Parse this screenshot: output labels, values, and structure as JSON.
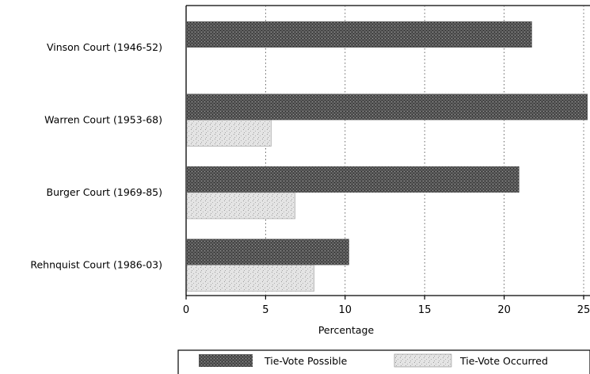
{
  "chart_data": {
    "type": "bar",
    "orientation": "horizontal",
    "title": "",
    "xlabel": "Percentage",
    "ylabel": "",
    "xlim": [
      0,
      25
    ],
    "xticks": [
      0,
      5,
      10,
      15,
      20,
      25
    ],
    "grid": "vertical dotted",
    "legend_position": "bottom",
    "categories": [
      "Vinson Court (1946-52)",
      "Warren Court (1953-68)",
      "Burger Court (1969-85)",
      "Rehnquist Court (1986-03)"
    ],
    "series": [
      {
        "name": "Tie-Vote Possible",
        "values": [
          21.7,
          25.3,
          20.9,
          10.2
        ],
        "color": "#4a4a4a"
      },
      {
        "name": "Tie-Vote Occurred",
        "values": [
          null,
          5.3,
          6.8,
          8.0
        ],
        "color": "#d4d4d4"
      }
    ]
  }
}
